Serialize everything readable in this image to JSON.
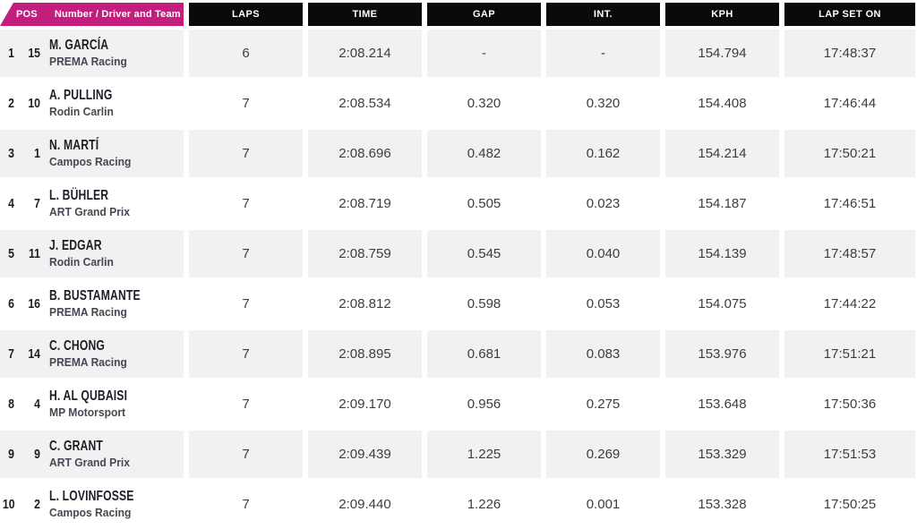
{
  "table": {
    "header": {
      "pos_label": "POS",
      "driver_label": "Number / Driver and Team",
      "columns": [
        "LAPS",
        "TIME",
        "GAP",
        "INT.",
        "KPH",
        "LAP SET ON"
      ]
    },
    "rows": [
      {
        "pos": "1",
        "number": "15",
        "driver": "M. GARCÍA",
        "team": "PREMA Racing",
        "laps": "6",
        "time": "2:08.214",
        "gap": "-",
        "int": "-",
        "kph": "154.794",
        "lap_set_on": "17:48:37"
      },
      {
        "pos": "2",
        "number": "10",
        "driver": "A. PULLING",
        "team": "Rodin Carlin",
        "laps": "7",
        "time": "2:08.534",
        "gap": "0.320",
        "int": "0.320",
        "kph": "154.408",
        "lap_set_on": "17:46:44"
      },
      {
        "pos": "3",
        "number": "1",
        "driver": "N. MARTÍ",
        "team": "Campos Racing",
        "laps": "7",
        "time": "2:08.696",
        "gap": "0.482",
        "int": "0.162",
        "kph": "154.214",
        "lap_set_on": "17:50:21"
      },
      {
        "pos": "4",
        "number": "7",
        "driver": "L. BÜHLER",
        "team": "ART Grand Prix",
        "laps": "7",
        "time": "2:08.719",
        "gap": "0.505",
        "int": "0.023",
        "kph": "154.187",
        "lap_set_on": "17:46:51"
      },
      {
        "pos": "5",
        "number": "11",
        "driver": "J. EDGAR",
        "team": "Rodin Carlin",
        "laps": "7",
        "time": "2:08.759",
        "gap": "0.545",
        "int": "0.040",
        "kph": "154.139",
        "lap_set_on": "17:48:57"
      },
      {
        "pos": "6",
        "number": "16",
        "driver": "B. BUSTAMANTE",
        "team": "PREMA Racing",
        "laps": "7",
        "time": "2:08.812",
        "gap": "0.598",
        "int": "0.053",
        "kph": "154.075",
        "lap_set_on": "17:44:22"
      },
      {
        "pos": "7",
        "number": "14",
        "driver": "C. CHONG",
        "team": "PREMA Racing",
        "laps": "7",
        "time": "2:08.895",
        "gap": "0.681",
        "int": "0.083",
        "kph": "153.976",
        "lap_set_on": "17:51:21"
      },
      {
        "pos": "8",
        "number": "4",
        "driver": "H. AL QUBAISI",
        "team": "MP Motorsport",
        "laps": "7",
        "time": "2:09.170",
        "gap": "0.956",
        "int": "0.275",
        "kph": "153.648",
        "lap_set_on": "17:50:36"
      },
      {
        "pos": "9",
        "number": "9",
        "driver": "C. GRANT",
        "team": "ART Grand Prix",
        "laps": "7",
        "time": "2:09.439",
        "gap": "1.225",
        "int": "0.269",
        "kph": "153.329",
        "lap_set_on": "17:51:53"
      },
      {
        "pos": "10",
        "number": "2",
        "driver": "L. LOVINFOSSE",
        "team": "Campos Racing",
        "laps": "7",
        "time": "2:09.440",
        "gap": "1.226",
        "int": "0.001",
        "kph": "153.328",
        "lap_set_on": "17:50:25"
      }
    ]
  },
  "colors": {
    "accent_pink": "#c31d7e",
    "header_black": "#0a0a0a",
    "row_gray": "#f1f1f1",
    "driver_ink": "#1d1d27",
    "team_ink": "#474753",
    "value_ink": "#3d3d3d"
  }
}
